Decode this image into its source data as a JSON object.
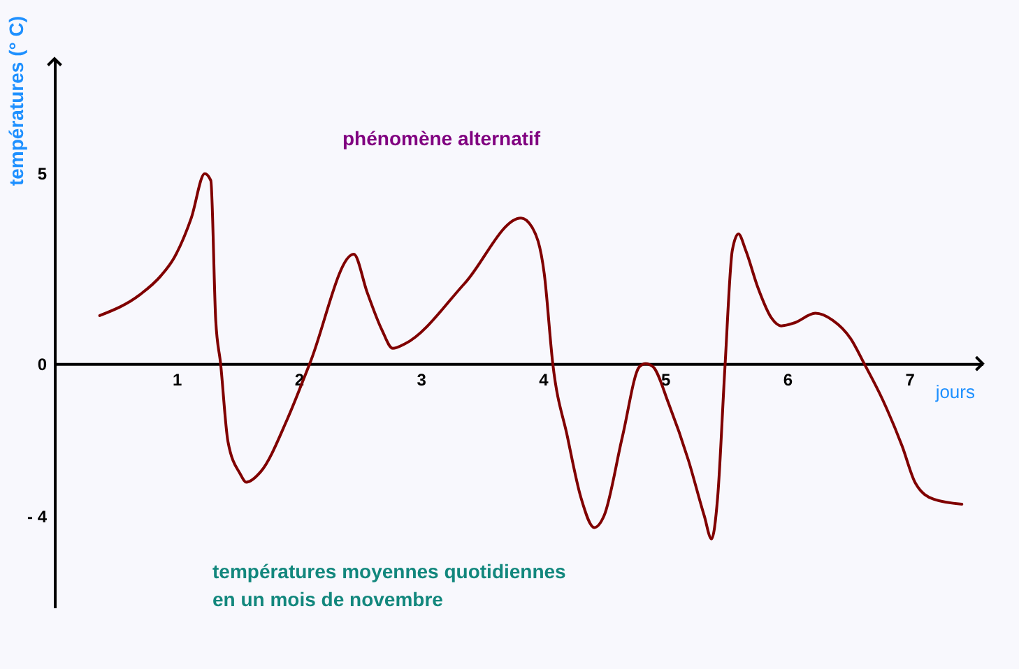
{
  "chart_data": {
    "type": "line",
    "title": "phénomène alternatif",
    "xlabel": "jours",
    "ylabel": "températures (° C)",
    "annotations": [
      "températures moyennes quotidiennes\nen un mois de novembre"
    ],
    "x": [
      0.37,
      0.7,
      0.87,
      0.98,
      1.12,
      1.23,
      1.28,
      1.32,
      1.36,
      1.42,
      1.52,
      1.57,
      1.69,
      1.91,
      2.09,
      2.45,
      2.56,
      2.68,
      2.77,
      2.87,
      3.36,
      3.82,
      3.91,
      4.01,
      4.08,
      4.2,
      4.31,
      4.42,
      4.5,
      4.65,
      4.79,
      4.84,
      4.9,
      5.03,
      5.19,
      5.32,
      5.38,
      5.43,
      5.49,
      5.55,
      5.6,
      5.66,
      5.76,
      5.87,
      5.95,
      6.06,
      6.23,
      6.37,
      6.52,
      6.63,
      6.78,
      6.94,
      7.05,
      7.2,
      7.43
    ],
    "series": [
      {
        "color": "#800000",
        "values": [
          1.26,
          1.81,
          2.3,
          2.78,
          3.82,
          4.98,
          4.8,
          1.14,
          0,
          -2.04,
          -2.89,
          -3.11,
          -2.83,
          -1.43,
          0,
          2.87,
          1.87,
          0.89,
          0.4,
          0.52,
          2.11,
          3.82,
          3.58,
          2.36,
          0,
          -1.92,
          -3.51,
          -4.3,
          -3.99,
          -1.92,
          -0.08,
          0,
          -0.08,
          -1.06,
          -2.53,
          -3.99,
          -4.6,
          -3.51,
          -0.08,
          2.97,
          3.4,
          2.97,
          1.99,
          1.2,
          0.99,
          1.07,
          1.32,
          1.14,
          0.65,
          0,
          -0.94,
          -2.16,
          -3.14,
          -3.56,
          -3.69
        ]
      }
    ],
    "xlim": [
      0,
      7.6
    ],
    "ylim": [
      -6.4,
      8
    ],
    "xticks": [
      1,
      2,
      3,
      4,
      5,
      6,
      7
    ],
    "yticks": [
      {
        "value": -4,
        "label": "- 4"
      },
      0,
      5
    ],
    "grid": false,
    "line_style": "solid"
  }
}
